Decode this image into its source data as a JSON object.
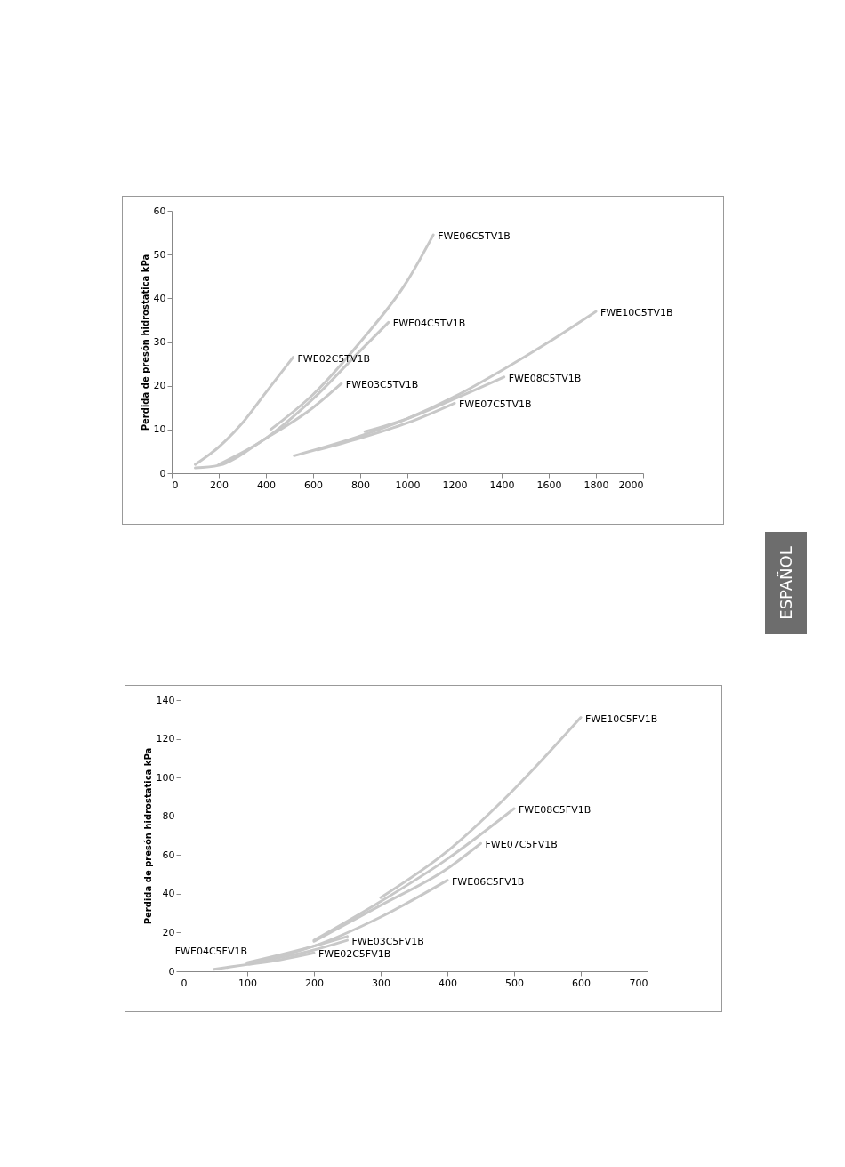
{
  "chart_data": [
    {
      "type": "line",
      "ylabel": "Perdida de presón hidrostatica kPa",
      "xlim": [
        0,
        2000
      ],
      "xticks": [
        0,
        200,
        400,
        600,
        800,
        1000,
        1200,
        1400,
        1600,
        1800,
        2000
      ],
      "ylim": [
        0,
        60
      ],
      "yticks": [
        0,
        10,
        20,
        30,
        40,
        50,
        60
      ],
      "grid": false,
      "legend": false,
      "annotations": [
        "ESPAÑOL"
      ],
      "series": [
        {
          "name": "FWE02C5TV1B",
          "color": "#c8c8c8",
          "x": [
            100,
            200,
            300,
            400,
            515
          ],
          "values": [
            2,
            6,
            11.5,
            18.5,
            26.5
          ]
        },
        {
          "name": "FWE03C5TV1B",
          "color": "#c8c8c8",
          "x": [
            100,
            200,
            400,
            600,
            720
          ],
          "values": [
            1.2,
            1.8,
            8,
            15,
            20.5
          ]
        },
        {
          "name": "FWE04C5TV1B",
          "color": "#c8c8c8",
          "x": [
            200,
            400,
            600,
            800,
            920
          ],
          "values": [
            2,
            8,
            17,
            28,
            34.5
          ]
        },
        {
          "name": "FWE06C5TV1B",
          "color": "#c8c8c8",
          "x": [
            420,
            600,
            800,
            1000,
            1110
          ],
          "values": [
            10,
            18,
            30,
            44,
            54.5
          ]
        },
        {
          "name": "FWE07C5TV1B",
          "color": "#c8c8c8",
          "x": [
            620,
            800,
            1000,
            1200
          ],
          "values": [
            5.3,
            8,
            11.5,
            16
          ]
        },
        {
          "name": "FWE08C5TV1B",
          "color": "#c8c8c8",
          "x": [
            820,
            1000,
            1200,
            1410
          ],
          "values": [
            9.5,
            12.5,
            17,
            22
          ]
        },
        {
          "name": "FWE10C5TV1B",
          "color": "#c8c8c8",
          "x": [
            520,
            800,
            1000,
            1200,
            1400,
            1600,
            1800
          ],
          "values": [
            4,
            8.5,
            12.5,
            17.5,
            23.5,
            30,
            37
          ]
        }
      ]
    },
    {
      "type": "line",
      "ylabel": "Perdida de presón hidrostatica kPa",
      "xlim": [
        0,
        700
      ],
      "xticks": [
        0,
        100,
        200,
        300,
        400,
        500,
        600,
        700
      ],
      "ylim": [
        0,
        140
      ],
      "yticks": [
        0,
        20,
        40,
        60,
        80,
        100,
        120,
        140
      ],
      "grid": false,
      "legend": false,
      "series": [
        {
          "name": "FWE02C5FV1B",
          "color": "#c8c8c8",
          "x": [
            50,
            100,
            150,
            200
          ],
          "values": [
            1,
            3.5,
            6,
            9.5
          ]
        },
        {
          "name": "FWE03C5FV1B",
          "color": "#c8c8c8",
          "x": [
            100,
            200,
            250
          ],
          "values": [
            4,
            11,
            16
          ]
        },
        {
          "name": "FWE04C5FV1B",
          "color": "#c8c8c8",
          "x": [
            100,
            200,
            250
          ],
          "values": [
            4.5,
            13,
            18
          ]
        },
        {
          "name": "FWE06C5FV1B",
          "color": "#c8c8c8",
          "x": [
            100,
            200,
            300,
            400
          ],
          "values": [
            4,
            13,
            28,
            47
          ]
        },
        {
          "name": "FWE07C5FV1B",
          "color": "#c8c8c8",
          "x": [
            200,
            300,
            400,
            450
          ],
          "values": [
            15.5,
            34,
            53,
            66
          ]
        },
        {
          "name": "FWE08C5FV1B",
          "color": "#c8c8c8",
          "x": [
            200,
            300,
            400,
            500
          ],
          "values": [
            16,
            36,
            58,
            84
          ]
        },
        {
          "name": "FWE10C5FV1B",
          "color": "#c8c8c8",
          "x": [
            300,
            400,
            500,
            600
          ],
          "values": [
            38,
            62,
            94,
            131
          ]
        }
      ]
    }
  ]
}
